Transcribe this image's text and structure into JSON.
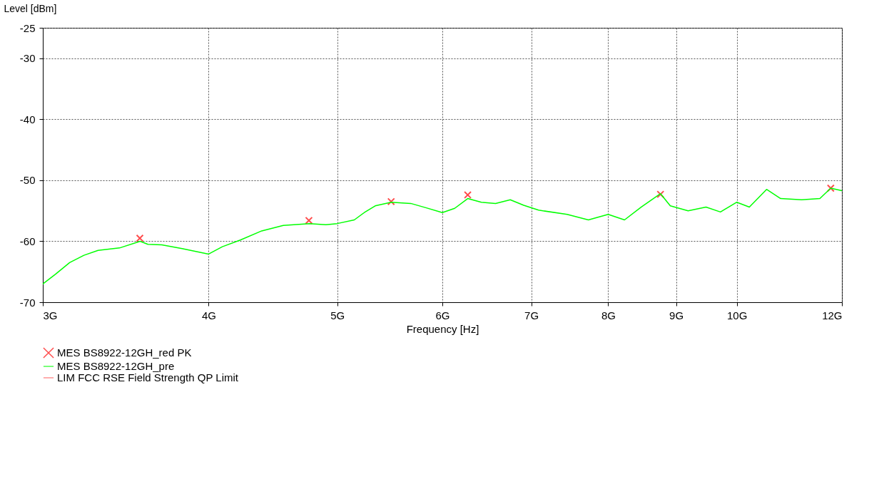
{
  "chart_data": {
    "type": "line",
    "xlabel": "Frequency [Hz]",
    "ylabel": "Level [dBm]",
    "log": "x",
    "xlim": [
      3,
      12
    ],
    "xticks": [
      {
        "value": 3,
        "label": "3G"
      },
      {
        "value": 4,
        "label": "4G"
      },
      {
        "value": 5,
        "label": "5G"
      },
      {
        "value": 6,
        "label": "6G"
      },
      {
        "value": 7,
        "label": "7G"
      },
      {
        "value": 8,
        "label": "8G"
      },
      {
        "value": 9,
        "label": "9G"
      },
      {
        "value": 10,
        "label": "10G"
      },
      {
        "value": 12,
        "label": "12G"
      }
    ],
    "ylim": [
      -70,
      -25
    ],
    "yticks": [
      -25,
      -30,
      -40,
      -50,
      -60,
      -70
    ],
    "grid": true,
    "legend": "bottom",
    "series": [
      {
        "name": "MES BS8922-12GH_red PK",
        "type": "scatter",
        "marker": "cross",
        "color": "#ff0000",
        "x": [
          3.55,
          4.76,
          5.49,
          6.27,
          8.76,
          11.77
        ],
        "values": [
          -59.5,
          -56.6,
          -53.5,
          -52.4,
          -52.3,
          -51.3
        ]
      },
      {
        "name": "MES BS8922-12GH_pre",
        "type": "line",
        "line_style": "solid",
        "color": "#00ff00",
        "x": [
          3.0,
          3.067,
          3.143,
          3.222,
          3.302,
          3.427,
          3.552,
          3.6,
          3.688,
          3.82,
          4.0,
          4.096,
          4.226,
          4.386,
          4.553,
          4.765,
          4.902,
          5.0,
          5.15,
          5.24,
          5.34,
          5.49,
          5.68,
          5.83,
          6.0,
          6.13,
          6.27,
          6.42,
          6.58,
          6.75,
          6.91,
          7.09,
          7.45,
          7.73,
          8.0,
          8.23,
          8.47,
          8.76,
          8.91,
          9.19,
          9.48,
          9.72,
          10.0,
          10.22,
          10.53,
          10.79,
          11.19,
          11.55,
          11.77,
          12.0
        ],
        "values": [
          -67.0,
          -65.4,
          -63.5,
          -62.3,
          -61.5,
          -61.1,
          -60.0,
          -60.5,
          -60.6,
          -61.2,
          -62.1,
          -60.9,
          -59.8,
          -58.3,
          -57.4,
          -57.1,
          -57.3,
          -57.1,
          -56.5,
          -55.3,
          -54.2,
          -53.6,
          -53.8,
          -54.5,
          -55.3,
          -54.6,
          -53.0,
          -53.6,
          -53.8,
          -53.2,
          -54.1,
          -54.9,
          -55.6,
          -56.5,
          -55.6,
          -56.5,
          -54.4,
          -52.2,
          -54.2,
          -55.0,
          -54.4,
          -55.2,
          -53.6,
          -54.4,
          -51.5,
          -53.0,
          -53.2,
          -53.0,
          -51.3,
          -51.7
        ]
      },
      {
        "name": "LIM FCC RSE Field Strength QP Limit",
        "type": "line",
        "color": "#ff6666"
      }
    ]
  }
}
